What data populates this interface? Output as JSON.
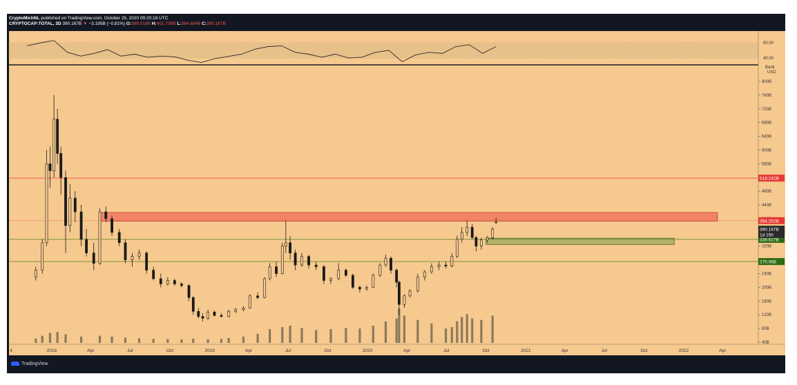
{
  "header": {
    "line1_author": "CryptoMichNL",
    "line1_rest": "published on TradingView.com, October 25, 2020 09:20:18 UTC",
    "line2_symbol": "CRYPTOCAP:TOTAL, 3D",
    "line2_close": "390.167B",
    "line2_change": "−3.195B (−0.81%)",
    "open_label": "O:",
    "open_value": "388.018B",
    "high_label": "H:",
    "high_value": "401.736B",
    "low_label": "L:",
    "low_value": "384.684B",
    "close_label": "C:",
    "close_value": "390.167B"
  },
  "footer": {
    "brand": "TradingView"
  },
  "colors": {
    "background": "#f6c98f",
    "frame": "#131722",
    "candle": "#1a1a1a",
    "volume": "#8a7a5a",
    "resistance_line": "#ef5350",
    "support_line": "#6b8e23",
    "resistance_zone": "#f28466",
    "support_zone": "#b5b26a",
    "rsi_line": "#2a2a2a"
  },
  "chart_data": [
    {
      "type": "line",
      "name": "rsi-panel",
      "ylim": [
        20,
        95
      ],
      "tick_labels": [
        "80.00",
        "40.00"
      ],
      "tick_values": [
        80,
        40
      ],
      "x": [
        "2017-11",
        "2017-12",
        "2018-01",
        "2018-02",
        "2018-03",
        "2018-04",
        "2018-05",
        "2018-06",
        "2018-07",
        "2018-08",
        "2018-09",
        "2018-10",
        "2018-11",
        "2018-12",
        "2019-01",
        "2019-02",
        "2019-03",
        "2019-04",
        "2019-05",
        "2019-06",
        "2019-07",
        "2019-08",
        "2019-09",
        "2019-10",
        "2019-11",
        "2019-12",
        "2020-01",
        "2020-02",
        "2020-03",
        "2020-04",
        "2020-05",
        "2020-06",
        "2020-07",
        "2020-08",
        "2020-09",
        "2020-10"
      ],
      "values": [
        72,
        80,
        86,
        55,
        45,
        52,
        62,
        45,
        50,
        42,
        45,
        43,
        34,
        28,
        38,
        44,
        50,
        63,
        70,
        72,
        55,
        50,
        42,
        50,
        40,
        42,
        55,
        60,
        30,
        48,
        55,
        52,
        70,
        75,
        52,
        70
      ]
    },
    {
      "type": "candlestick",
      "name": "price-panel",
      "title": "CRYPTOCAP:TOTAL, 3D",
      "ylabel": "USD",
      "scale_label": "Bank",
      "ylim": [
        25,
        860
      ],
      "y_ticks": [
        40,
        80,
        120,
        160,
        200,
        240,
        280,
        320,
        360,
        400,
        440,
        480,
        520,
        560,
        600,
        640,
        680,
        720,
        760,
        800
      ],
      "y_tick_labels": [
        "40B",
        "80B",
        "120B",
        "160B",
        "200B",
        "240B",
        "280B",
        "320B",
        "360B",
        "400B",
        "440B",
        "480B",
        "520B",
        "560B",
        "600B",
        "640B",
        "680B",
        "720B",
        "760B",
        "800B"
      ],
      "x_tick_labels": [
        "4",
        "2018",
        "Apr",
        "Jul",
        "Oct",
        "2019",
        "Apr",
        "Jul",
        "Oct",
        "2020",
        "Apr",
        "Jul",
        "Oct",
        "2021",
        "Apr",
        "Jul",
        "Oct",
        "2022",
        "Apr"
      ],
      "x_tick_dates": [
        "2017-12-01",
        "2018-01-01",
        "2018-04-01",
        "2018-07-01",
        "2018-10-01",
        "2019-01-01",
        "2019-04-01",
        "2019-07-01",
        "2019-10-01",
        "2020-01-01",
        "2020-04-01",
        "2020-07-01",
        "2020-10-01",
        "2021-01-01",
        "2021-04-01",
        "2021-07-01",
        "2021-10-01",
        "2022-01-01",
        "2022-04-01"
      ],
      "ohlc": [
        {
          "date": "2017-11-25",
          "open": 230,
          "high": 260,
          "low": 220,
          "close": 250
        },
        {
          "date": "2017-12-10",
          "open": 250,
          "high": 340,
          "low": 240,
          "close": 330
        },
        {
          "date": "2017-12-20",
          "open": 330,
          "high": 600,
          "low": 320,
          "close": 560
        },
        {
          "date": "2017-12-28",
          "open": 560,
          "high": 610,
          "low": 490,
          "close": 540
        },
        {
          "date": "2018-01-06",
          "open": 540,
          "high": 760,
          "low": 520,
          "close": 690
        },
        {
          "date": "2018-01-14",
          "open": 690,
          "high": 720,
          "low": 560,
          "close": 590
        },
        {
          "date": "2018-01-22",
          "open": 590,
          "high": 610,
          "low": 470,
          "close": 520
        },
        {
          "date": "2018-02-02",
          "open": 520,
          "high": 540,
          "low": 300,
          "close": 380
        },
        {
          "date": "2018-02-12",
          "open": 380,
          "high": 500,
          "low": 360,
          "close": 460
        },
        {
          "date": "2018-02-24",
          "open": 460,
          "high": 480,
          "low": 390,
          "close": 420
        },
        {
          "date": "2018-03-10",
          "open": 420,
          "high": 440,
          "low": 320,
          "close": 340
        },
        {
          "date": "2018-03-22",
          "open": 340,
          "high": 370,
          "low": 290,
          "close": 300
        },
        {
          "date": "2018-04-08",
          "open": 300,
          "high": 330,
          "low": 250,
          "close": 270
        },
        {
          "date": "2018-04-22",
          "open": 270,
          "high": 430,
          "low": 265,
          "close": 420
        },
        {
          "date": "2018-05-06",
          "open": 420,
          "high": 435,
          "low": 390,
          "close": 400
        },
        {
          "date": "2018-05-20",
          "open": 400,
          "high": 410,
          "low": 350,
          "close": 360
        },
        {
          "date": "2018-06-06",
          "open": 360,
          "high": 370,
          "low": 320,
          "close": 330
        },
        {
          "date": "2018-06-20",
          "open": 330,
          "high": 340,
          "low": 270,
          "close": 280
        },
        {
          "date": "2018-07-06",
          "open": 280,
          "high": 300,
          "low": 260,
          "close": 290
        },
        {
          "date": "2018-07-22",
          "open": 290,
          "high": 310,
          "low": 280,
          "close": 300
        },
        {
          "date": "2018-08-08",
          "open": 300,
          "high": 305,
          "low": 240,
          "close": 250
        },
        {
          "date": "2018-08-24",
          "open": 250,
          "high": 260,
          "low": 220,
          "close": 225
        },
        {
          "date": "2018-09-10",
          "open": 225,
          "high": 240,
          "low": 200,
          "close": 210
        },
        {
          "date": "2018-09-26",
          "open": 210,
          "high": 230,
          "low": 205,
          "close": 220
        },
        {
          "date": "2018-10-12",
          "open": 220,
          "high": 225,
          "low": 205,
          "close": 210
        },
        {
          "date": "2018-10-28",
          "open": 210,
          "high": 215,
          "low": 200,
          "close": 205
        },
        {
          "date": "2018-11-14",
          "open": 205,
          "high": 210,
          "low": 160,
          "close": 170
        },
        {
          "date": "2018-11-24",
          "open": 170,
          "high": 175,
          "low": 120,
          "close": 130
        },
        {
          "date": "2018-12-06",
          "open": 130,
          "high": 140,
          "low": 110,
          "close": 115
        },
        {
          "date": "2018-12-16",
          "open": 115,
          "high": 125,
          "low": 100,
          "close": 110
        },
        {
          "date": "2018-12-28",
          "open": 110,
          "high": 135,
          "low": 105,
          "close": 128
        },
        {
          "date": "2019-01-12",
          "open": 128,
          "high": 132,
          "low": 115,
          "close": 118
        },
        {
          "date": "2019-01-28",
          "open": 118,
          "high": 125,
          "low": 112,
          "close": 115
        },
        {
          "date": "2019-02-14",
          "open": 115,
          "high": 135,
          "low": 112,
          "close": 130
        },
        {
          "date": "2019-03-02",
          "open": 130,
          "high": 140,
          "low": 125,
          "close": 135
        },
        {
          "date": "2019-03-20",
          "open": 135,
          "high": 145,
          "low": 130,
          "close": 140
        },
        {
          "date": "2019-04-04",
          "open": 140,
          "high": 180,
          "low": 138,
          "close": 175
        },
        {
          "date": "2019-04-22",
          "open": 175,
          "high": 185,
          "low": 165,
          "close": 170
        },
        {
          "date": "2019-05-08",
          "open": 170,
          "high": 230,
          "low": 168,
          "close": 225
        },
        {
          "date": "2019-05-20",
          "open": 225,
          "high": 270,
          "low": 220,
          "close": 260
        },
        {
          "date": "2019-06-04",
          "open": 260,
          "high": 275,
          "low": 230,
          "close": 240
        },
        {
          "date": "2019-06-18",
          "open": 240,
          "high": 330,
          "low": 238,
          "close": 320
        },
        {
          "date": "2019-06-26",
          "open": 320,
          "high": 395,
          "low": 300,
          "close": 330
        },
        {
          "date": "2019-07-06",
          "open": 330,
          "high": 350,
          "low": 280,
          "close": 300
        },
        {
          "date": "2019-07-18",
          "open": 300,
          "high": 310,
          "low": 250,
          "close": 265
        },
        {
          "date": "2019-08-02",
          "open": 265,
          "high": 300,
          "low": 260,
          "close": 290
        },
        {
          "date": "2019-08-18",
          "open": 290,
          "high": 295,
          "low": 255,
          "close": 265
        },
        {
          "date": "2019-09-04",
          "open": 265,
          "high": 275,
          "low": 250,
          "close": 260
        },
        {
          "date": "2019-09-22",
          "open": 260,
          "high": 265,
          "low": 210,
          "close": 220
        },
        {
          "date": "2019-10-08",
          "open": 220,
          "high": 230,
          "low": 210,
          "close": 225
        },
        {
          "date": "2019-10-26",
          "open": 225,
          "high": 270,
          "low": 220,
          "close": 250
        },
        {
          "date": "2019-11-12",
          "open": 250,
          "high": 255,
          "low": 230,
          "close": 235
        },
        {
          "date": "2019-11-28",
          "open": 235,
          "high": 240,
          "low": 195,
          "close": 200
        },
        {
          "date": "2019-12-14",
          "open": 200,
          "high": 205,
          "low": 185,
          "close": 195
        },
        {
          "date": "2019-12-30",
          "open": 195,
          "high": 205,
          "low": 190,
          "close": 200
        },
        {
          "date": "2020-01-14",
          "open": 200,
          "high": 240,
          "low": 198,
          "close": 235
        },
        {
          "date": "2020-01-30",
          "open": 235,
          "high": 270,
          "low": 230,
          "close": 265
        },
        {
          "date": "2020-02-12",
          "open": 265,
          "high": 295,
          "low": 260,
          "close": 285
        },
        {
          "date": "2020-02-24",
          "open": 285,
          "high": 290,
          "low": 240,
          "close": 250
        },
        {
          "date": "2020-03-08",
          "open": 250,
          "high": 255,
          "low": 200,
          "close": 215
        },
        {
          "date": "2020-03-14",
          "open": 215,
          "high": 220,
          "low": 120,
          "close": 150
        },
        {
          "date": "2020-03-26",
          "open": 150,
          "high": 180,
          "low": 140,
          "close": 175
        },
        {
          "date": "2020-04-08",
          "open": 175,
          "high": 195,
          "low": 170,
          "close": 190
        },
        {
          "date": "2020-04-26",
          "open": 190,
          "high": 240,
          "low": 185,
          "close": 230
        },
        {
          "date": "2020-05-12",
          "open": 230,
          "high": 250,
          "low": 220,
          "close": 245
        },
        {
          "date": "2020-05-28",
          "open": 245,
          "high": 270,
          "low": 240,
          "close": 260
        },
        {
          "date": "2020-06-14",
          "open": 260,
          "high": 275,
          "low": 250,
          "close": 265
        },
        {
          "date": "2020-06-30",
          "open": 265,
          "high": 275,
          "low": 255,
          "close": 262
        },
        {
          "date": "2020-07-14",
          "open": 262,
          "high": 300,
          "low": 258,
          "close": 290
        },
        {
          "date": "2020-07-26",
          "open": 290,
          "high": 350,
          "low": 285,
          "close": 340
        },
        {
          "date": "2020-08-06",
          "open": 340,
          "high": 375,
          "low": 330,
          "close": 360
        },
        {
          "date": "2020-08-18",
          "open": 360,
          "high": 395,
          "low": 350,
          "close": 375
        },
        {
          "date": "2020-08-30",
          "open": 375,
          "high": 385,
          "low": 340,
          "close": 345
        },
        {
          "date": "2020-09-08",
          "open": 345,
          "high": 350,
          "low": 305,
          "close": 320
        },
        {
          "date": "2020-09-20",
          "open": 320,
          "high": 345,
          "low": 310,
          "close": 338
        },
        {
          "date": "2020-10-04",
          "open": 338,
          "high": 350,
          "low": 330,
          "close": 345
        },
        {
          "date": "2020-10-16",
          "open": 345,
          "high": 375,
          "low": 340,
          "close": 370
        },
        {
          "date": "2020-10-24",
          "open": 388,
          "high": 402,
          "low": 385,
          "close": 390
        }
      ],
      "volume": [
        {
          "date": "2017-11-25",
          "value": 15
        },
        {
          "date": "2017-12-10",
          "value": 25
        },
        {
          "date": "2017-12-28",
          "value": 35
        },
        {
          "date": "2018-01-14",
          "value": 38
        },
        {
          "date": "2018-02-02",
          "value": 30
        },
        {
          "date": "2018-03-10",
          "value": 22
        },
        {
          "date": "2018-04-22",
          "value": 25
        },
        {
          "date": "2018-05-20",
          "value": 22
        },
        {
          "date": "2018-06-20",
          "value": 18
        },
        {
          "date": "2018-07-22",
          "value": 16
        },
        {
          "date": "2018-08-24",
          "value": 14
        },
        {
          "date": "2018-09-26",
          "value": 13
        },
        {
          "date": "2018-10-28",
          "value": 12
        },
        {
          "date": "2018-11-24",
          "value": 15
        },
        {
          "date": "2018-12-28",
          "value": 13
        },
        {
          "date": "2019-01-28",
          "value": 14
        },
        {
          "date": "2019-02-14",
          "value": 17
        },
        {
          "date": "2019-03-20",
          "value": 22
        },
        {
          "date": "2019-04-22",
          "value": 32
        },
        {
          "date": "2019-05-20",
          "value": 48
        },
        {
          "date": "2019-06-18",
          "value": 55
        },
        {
          "date": "2019-07-06",
          "value": 60
        },
        {
          "date": "2019-08-02",
          "value": 52
        },
        {
          "date": "2019-09-04",
          "value": 45
        },
        {
          "date": "2019-10-08",
          "value": 48
        },
        {
          "date": "2019-11-12",
          "value": 52
        },
        {
          "date": "2019-12-14",
          "value": 50
        },
        {
          "date": "2020-01-14",
          "value": 60
        },
        {
          "date": "2020-02-12",
          "value": 75
        },
        {
          "date": "2020-03-08",
          "value": 85
        },
        {
          "date": "2020-03-14",
          "value": 120
        },
        {
          "date": "2020-03-26",
          "value": 95
        },
        {
          "date": "2020-04-26",
          "value": 80
        },
        {
          "date": "2020-05-28",
          "value": 68
        },
        {
          "date": "2020-06-30",
          "value": 50
        },
        {
          "date": "2020-07-14",
          "value": 55
        },
        {
          "date": "2020-07-26",
          "value": 75
        },
        {
          "date": "2020-08-06",
          "value": 90
        },
        {
          "date": "2020-08-18",
          "value": 100
        },
        {
          "date": "2020-08-30",
          "value": 85
        },
        {
          "date": "2020-09-20",
          "value": 80
        },
        {
          "date": "2020-10-16",
          "value": 95
        }
      ],
      "price_levels": [
        {
          "label": "518.242B",
          "value": 518.242,
          "kind": "resistance"
        },
        {
          "label": "394.252B",
          "value": 394.252,
          "kind": "resistance-dotted"
        },
        {
          "label": "339.627B",
          "value": 339.627,
          "kind": "support"
        },
        {
          "label": "275.06B",
          "value": 275.06,
          "kind": "support"
        }
      ],
      "current_price_label": "390.167B",
      "countdown_label": "1d 15h",
      "zones": [
        {
          "name": "resistance-zone",
          "from": "2018-04-22",
          "to": "2022-03-20",
          "low": 393,
          "high": 418
        },
        {
          "name": "support-zone",
          "from": "2020-10-01",
          "to": "2021-12-10",
          "low": 325,
          "high": 343
        }
      ]
    }
  ]
}
